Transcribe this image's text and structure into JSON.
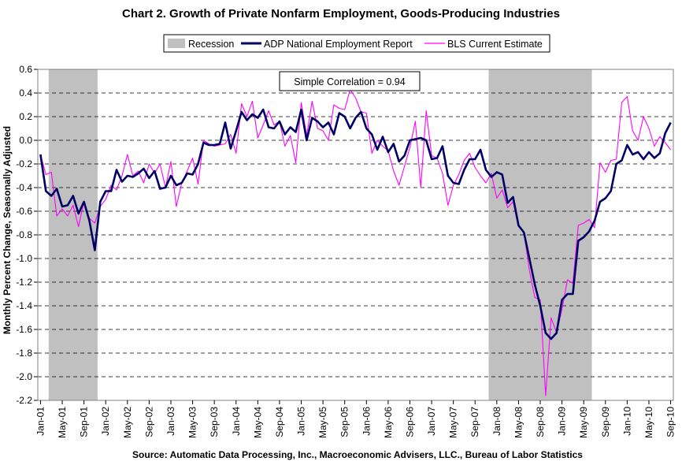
{
  "chart_data": {
    "type": "line",
    "title": "Chart 2.  Growth of Private Nonfarm Employment, Goods-Producing Industries",
    "ylabel": "Monthly Percent Change, Seasonally Adjusted",
    "source": "Source: Automatic Data Processing, Inc., Macroeconomic Advisers, LLC., Bureau of Labor Statistics",
    "annotation": "Simple Correlation = 0.94",
    "ylim": [
      -2.2,
      0.6
    ],
    "ytick_labels": [
      "0.6",
      "0.4",
      "0.2",
      "0.0",
      "-0.2",
      "-0.4",
      "-0.6",
      "-0.8",
      "-1.0",
      "-1.2",
      "-1.4",
      "-1.6",
      "-1.8",
      "-2.0",
      "-2.2"
    ],
    "x_start": "Jan-01",
    "x_end": "Dec-10",
    "xtick_labels": [
      "Jan-01",
      "May-01",
      "Sep-01",
      "Jan-02",
      "May-02",
      "Sep-02",
      "Jan-03",
      "May-03",
      "Sep-03",
      "Jan-04",
      "May-04",
      "Sep-04",
      "Jan-05",
      "May-05",
      "Sep-05",
      "Jan-06",
      "May-06",
      "Sep-06",
      "Jan-07",
      "May-07",
      "Sep-07",
      "Jan-08",
      "May-08",
      "Sep-08",
      "Jan-09",
      "May-09",
      "Sep-09",
      "Jan-10",
      "May-10",
      "Sep-10"
    ],
    "grid": "horizontal dashed",
    "legend_placement": "top",
    "recessions": [
      {
        "start": "Mar-01",
        "end": "Nov-01"
      },
      {
        "start": "Dec-07",
        "end": "Jun-09"
      }
    ],
    "series": [
      {
        "name": "ADP National Employment Report",
        "color": "#000066",
        "values": [
          -0.12,
          -0.43,
          -0.47,
          -0.41,
          -0.56,
          -0.55,
          -0.47,
          -0.62,
          -0.52,
          -0.68,
          -0.93,
          -0.52,
          -0.43,
          -0.43,
          -0.25,
          -0.35,
          -0.3,
          -0.31,
          -0.28,
          -0.24,
          -0.32,
          -0.26,
          -0.41,
          -0.4,
          -0.3,
          -0.38,
          -0.36,
          -0.28,
          -0.29,
          -0.2,
          -0.02,
          -0.04,
          -0.04,
          -0.03,
          0.15,
          -0.07,
          0.08,
          0.24,
          0.17,
          0.22,
          0.19,
          0.26,
          0.11,
          0.1,
          0.16,
          0.05,
          0.11,
          0.07,
          0.26,
          0.0,
          0.19,
          0.16,
          0.11,
          0.15,
          0.05,
          0.23,
          0.2,
          0.1,
          0.19,
          0.24,
          0.1,
          0.05,
          -0.08,
          0.03,
          -0.1,
          -0.03,
          -0.18,
          -0.13,
          0.0,
          0.01,
          0.02,
          0.0,
          -0.16,
          -0.15,
          -0.05,
          -0.3,
          -0.36,
          -0.37,
          -0.25,
          -0.16,
          -0.16,
          -0.08,
          -0.25,
          -0.31,
          -0.27,
          -0.29,
          -0.53,
          -0.48,
          -0.72,
          -0.78,
          -1.0,
          -1.22,
          -1.4,
          -1.63,
          -1.68,
          -1.63,
          -1.35,
          -1.3,
          -1.3,
          -0.85,
          -0.82,
          -0.77,
          -0.68,
          -0.52,
          -0.49,
          -0.43,
          -0.2,
          -0.17,
          -0.04,
          -0.12,
          -0.1,
          -0.16,
          -0.1,
          -0.15,
          -0.11,
          0.06,
          0.15
        ]
      },
      {
        "name": "BLS Current Estimate",
        "color": "#ff00ff",
        "values": [
          -0.12,
          -0.29,
          -0.27,
          -0.64,
          -0.58,
          -0.64,
          -0.55,
          -0.73,
          -0.52,
          -0.66,
          -0.7,
          -0.56,
          -0.5,
          -0.38,
          -0.42,
          -0.3,
          -0.12,
          -0.3,
          -0.26,
          -0.36,
          -0.2,
          -0.28,
          -0.2,
          -0.4,
          -0.18,
          -0.56,
          -0.36,
          -0.26,
          -0.15,
          -0.37,
          0.0,
          -0.03,
          -0.05,
          -0.04,
          -0.03,
          0.05,
          -0.11,
          0.31,
          0.2,
          0.33,
          0.02,
          0.13,
          0.25,
          0.13,
          0.16,
          -0.05,
          0.04,
          -0.19,
          0.32,
          0.04,
          0.33,
          0.1,
          0.08,
          0.0,
          0.3,
          0.27,
          0.26,
          0.43,
          0.36,
          0.24,
          0.23,
          -0.11,
          0.0,
          -0.05,
          -0.09,
          -0.26,
          -0.38,
          -0.22,
          -0.06,
          0.16,
          -0.4,
          0.25,
          -0.13,
          -0.15,
          -0.28,
          -0.55,
          -0.38,
          -0.29,
          -0.17,
          -0.11,
          -0.23,
          -0.3,
          -0.36,
          -0.28,
          -0.49,
          -0.42,
          -0.57,
          -0.52,
          -0.73,
          -0.78,
          -1.1,
          -1.33,
          -1.35,
          -2.16,
          -1.5,
          -1.63,
          -1.43,
          -1.18,
          -1.21,
          -0.72,
          -0.7,
          -0.67,
          -0.74,
          -0.19,
          -0.27,
          -0.17,
          -0.16,
          0.32,
          0.37,
          0.08,
          0.0,
          0.2,
          0.1,
          -0.05,
          0.03,
          -0.02,
          -0.08
        ]
      }
    ]
  }
}
